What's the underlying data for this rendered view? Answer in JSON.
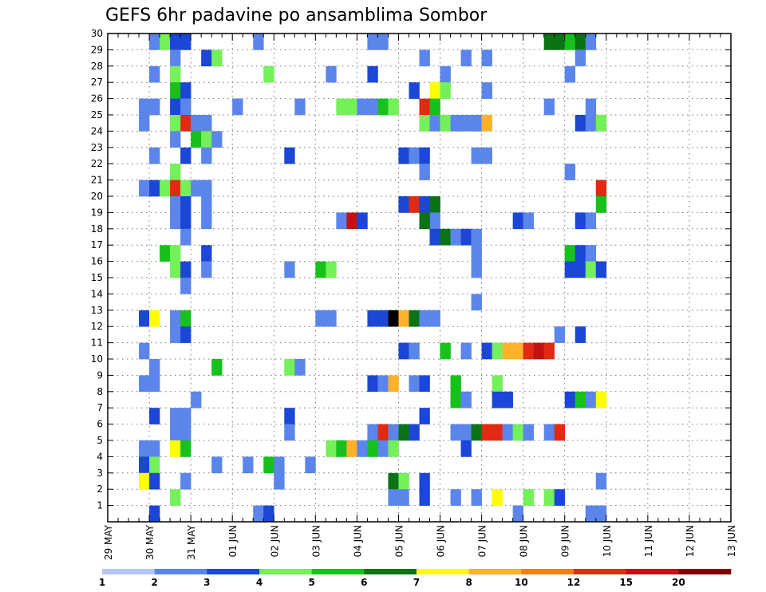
{
  "chart_data": {
    "type": "heatmap",
    "title": "GEFS 6hr padavine po ansamblima Sombor",
    "xlabel": "",
    "ylabel": "",
    "x_tick_labels": [
      "29 MAY",
      "30 MAY",
      "31 MAY",
      "01 JUN",
      "02 JUN",
      "03 JUN",
      "04 JUN",
      "05 JUN",
      "06 JUN",
      "07 JUN",
      "08 JUN",
      "09 JUN",
      "10 JUN",
      "11 JUN",
      "12 JUN",
      "13 JUN"
    ],
    "y_tick_labels": [
      "1",
      "2",
      "3",
      "4",
      "5",
      "6",
      "7",
      "8",
      "9",
      "10",
      "11",
      "12",
      "13",
      "14",
      "15",
      "16",
      "17",
      "18",
      "19",
      "20",
      "21",
      "22",
      "23",
      "24",
      "25",
      "26",
      "27",
      "28",
      "29",
      "30"
    ],
    "ylim": [
      0,
      30
    ],
    "x_steps": 60,
    "steps_per_day": 4,
    "grid": "dotted",
    "colorbar": {
      "position": "bottom",
      "tick_labels": [
        "1",
        "2",
        "3",
        "4",
        "5",
        "6",
        "7",
        "8",
        "10",
        "12",
        "15",
        "20"
      ],
      "colors": [
        "#b4c7f5",
        "#5b85eb",
        "#1c46d6",
        "#74f058",
        "#16c11b",
        "#0b7316",
        "#ffff00",
        "#ffb12a",
        "#ff7d0a",
        "#e02a12",
        "#c01414",
        "#800000"
      ]
    },
    "cells": [
      [
        3,
        30,
        1
      ],
      [
        4,
        30,
        2
      ],
      [
        5,
        30,
        3
      ],
      [
        6,
        30,
        3
      ],
      [
        7,
        30,
        1
      ],
      [
        9,
        30,
        1
      ],
      [
        12,
        30,
        5
      ],
      [
        14,
        30,
        5
      ],
      [
        15,
        30,
        5
      ],
      [
        28,
        30,
        9
      ],
      [
        29,
        30,
        9
      ],
      [
        30,
        30,
        9
      ],
      [
        32,
        30,
        2
      ],
      [
        33,
        30,
        5
      ],
      [
        35,
        30,
        3
      ],
      [
        36,
        30,
        12
      ],
      [
        38,
        30,
        6
      ],
      [
        40,
        30,
        1
      ],
      [
        44,
        30,
        6
      ],
      [
        4,
        29,
        1
      ],
      [
        5,
        29,
        3
      ],
      [
        6,
        29,
        2
      ],
      [
        7,
        29,
        2
      ],
      [
        14,
        29,
        1
      ],
      [
        25,
        29,
        1
      ],
      [
        26,
        29,
        1
      ],
      [
        42,
        29,
        5
      ],
      [
        43,
        29,
        5
      ],
      [
        44,
        29,
        4
      ],
      [
        45,
        29,
        5
      ],
      [
        46,
        29,
        1
      ],
      [
        6,
        28,
        1
      ],
      [
        9,
        28,
        2
      ],
      [
        10,
        28,
        3
      ],
      [
        30,
        28,
        1
      ],
      [
        34,
        28,
        1
      ],
      [
        36,
        28,
        1
      ],
      [
        45,
        28,
        1
      ],
      [
        4,
        27,
        1
      ],
      [
        6,
        27,
        3
      ],
      [
        15,
        27,
        3
      ],
      [
        21,
        27,
        1
      ],
      [
        25,
        27,
        2
      ],
      [
        32,
        27,
        1
      ],
      [
        44,
        27,
        1
      ],
      [
        6,
        26,
        4
      ],
      [
        7,
        26,
        2
      ],
      [
        29,
        26,
        2
      ],
      [
        31,
        26,
        6
      ],
      [
        32,
        26,
        3
      ],
      [
        36,
        26,
        1
      ],
      [
        3,
        25,
        1
      ],
      [
        4,
        25,
        1
      ],
      [
        6,
        25,
        2
      ],
      [
        7,
        25,
        1
      ],
      [
        12,
        25,
        1
      ],
      [
        18,
        25,
        1
      ],
      [
        22,
        25,
        3
      ],
      [
        23,
        25,
        3
      ],
      [
        24,
        25,
        1
      ],
      [
        25,
        25,
        1
      ],
      [
        26,
        25,
        4
      ],
      [
        27,
        25,
        3
      ],
      [
        30,
        25,
        9
      ],
      [
        31,
        25,
        4
      ],
      [
        42,
        25,
        1
      ],
      [
        46,
        25,
        1
      ],
      [
        3,
        24,
        1
      ],
      [
        6,
        24,
        3
      ],
      [
        7,
        24,
        9
      ],
      [
        8,
        24,
        1
      ],
      [
        9,
        24,
        1
      ],
      [
        30,
        24,
        3
      ],
      [
        31,
        24,
        1
      ],
      [
        32,
        24,
        3
      ],
      [
        33,
        24,
        1
      ],
      [
        34,
        24,
        1
      ],
      [
        35,
        24,
        1
      ],
      [
        36,
        24,
        7
      ],
      [
        45,
        24,
        2
      ],
      [
        46,
        24,
        1
      ],
      [
        47,
        24,
        3
      ],
      [
        6,
        23,
        1
      ],
      [
        8,
        23,
        4
      ],
      [
        9,
        23,
        3
      ],
      [
        10,
        23,
        1
      ],
      [
        4,
        22,
        1
      ],
      [
        7,
        22,
        2
      ],
      [
        9,
        22,
        1
      ],
      [
        17,
        22,
        2
      ],
      [
        28,
        22,
        2
      ],
      [
        29,
        22,
        1
      ],
      [
        30,
        22,
        2
      ],
      [
        35,
        22,
        1
      ],
      [
        36,
        22,
        1
      ],
      [
        6,
        21,
        3
      ],
      [
        30,
        21,
        1
      ],
      [
        44,
        21,
        1
      ],
      [
        3,
        20,
        1
      ],
      [
        4,
        20,
        2
      ],
      [
        5,
        20,
        3
      ],
      [
        6,
        20,
        9
      ],
      [
        7,
        20,
        3
      ],
      [
        8,
        20,
        1
      ],
      [
        9,
        20,
        1
      ],
      [
        47,
        20,
        9
      ],
      [
        6,
        19,
        1
      ],
      [
        7,
        19,
        2
      ],
      [
        9,
        19,
        1
      ],
      [
        28,
        19,
        1
      ],
      [
        29,
        19,
        1
      ],
      [
        30,
        19,
        2
      ],
      [
        31,
        19,
        1
      ],
      [
        28,
        19,
        2
      ],
      [
        29,
        19,
        9
      ],
      [
        30,
        19,
        2
      ],
      [
        31,
        19,
        5
      ],
      [
        47,
        19,
        4
      ],
      [
        6,
        18,
        1
      ],
      [
        7,
        18,
        2
      ],
      [
        9,
        18,
        1
      ],
      [
        31,
        18,
        1
      ],
      [
        30,
        18,
        5
      ],
      [
        22,
        18,
        1
      ],
      [
        23,
        18,
        10
      ],
      [
        24,
        18,
        2
      ],
      [
        39,
        18,
        2
      ],
      [
        40,
        18,
        1
      ],
      [
        45,
        18,
        2
      ],
      [
        46,
        18,
        1
      ],
      [
        31,
        17,
        1
      ],
      [
        7,
        17,
        1
      ],
      [
        31,
        17,
        2
      ],
      [
        32,
        17,
        5
      ],
      [
        33,
        17,
        1
      ],
      [
        34,
        17,
        2
      ],
      [
        35,
        17,
        1
      ],
      [
        5,
        16,
        4
      ],
      [
        6,
        16,
        3
      ],
      [
        9,
        16,
        2
      ],
      [
        35,
        16,
        1
      ],
      [
        44,
        16,
        4
      ],
      [
        45,
        16,
        2
      ],
      [
        46,
        16,
        1
      ],
      [
        6,
        15,
        3
      ],
      [
        7,
        15,
        2
      ],
      [
        9,
        15,
        1
      ],
      [
        17,
        15,
        1
      ],
      [
        20,
        15,
        4
      ],
      [
        21,
        15,
        3
      ],
      [
        35,
        15,
        1
      ],
      [
        44,
        15,
        2
      ],
      [
        45,
        15,
        2
      ],
      [
        46,
        15,
        3
      ],
      [
        47,
        15,
        2
      ],
      [
        7,
        14,
        1
      ],
      [
        35,
        13,
        1
      ],
      [
        3,
        12,
        2
      ],
      [
        4,
        12,
        6
      ],
      [
        6,
        12,
        1
      ],
      [
        7,
        12,
        4
      ],
      [
        20,
        12,
        1
      ],
      [
        21,
        12,
        1
      ],
      [
        25,
        12,
        2
      ],
      [
        26,
        12,
        2
      ],
      [
        27,
        12,
        12
      ],
      [
        28,
        12,
        7
      ],
      [
        29,
        12,
        5
      ],
      [
        30,
        12,
        1
      ],
      [
        31,
        12,
        1
      ],
      [
        6,
        11,
        1
      ],
      [
        7,
        11,
        2
      ],
      [
        43,
        11,
        1
      ],
      [
        45,
        11,
        2
      ],
      [
        3,
        10,
        1
      ],
      [
        28,
        10,
        2
      ],
      [
        29,
        10,
        1
      ],
      [
        32,
        10,
        4
      ],
      [
        34,
        10,
        1
      ],
      [
        36,
        10,
        2
      ],
      [
        37,
        10,
        3
      ],
      [
        38,
        10,
        7
      ],
      [
        39,
        10,
        7
      ],
      [
        40,
        10,
        9
      ],
      [
        41,
        10,
        10
      ],
      [
        42,
        10,
        9
      ],
      [
        4,
        9,
        1
      ],
      [
        10,
        9,
        4
      ],
      [
        17,
        9,
        3
      ],
      [
        18,
        9,
        1
      ],
      [
        3,
        8,
        1
      ],
      [
        4,
        8,
        1
      ],
      [
        25,
        8,
        2
      ],
      [
        26,
        8,
        1
      ],
      [
        27,
        8,
        7
      ],
      [
        29,
        8,
        1
      ],
      [
        30,
        8,
        2
      ],
      [
        33,
        8,
        4
      ],
      [
        37,
        8,
        3
      ],
      [
        8,
        7,
        1
      ],
      [
        33,
        7,
        4
      ],
      [
        34,
        7,
        1
      ],
      [
        37,
        7,
        2
      ],
      [
        38,
        7,
        2
      ],
      [
        44,
        7,
        2
      ],
      [
        45,
        7,
        4
      ],
      [
        46,
        7,
        1
      ],
      [
        47,
        7,
        6
      ],
      [
        4,
        6,
        2
      ],
      [
        6,
        6,
        1
      ],
      [
        7,
        6,
        1
      ],
      [
        17,
        6,
        2
      ],
      [
        30,
        6,
        2
      ],
      [
        6,
        5,
        1
      ],
      [
        7,
        5,
        1
      ],
      [
        17,
        5,
        1
      ],
      [
        25,
        5,
        1
      ],
      [
        26,
        5,
        9
      ],
      [
        27,
        5,
        1
      ],
      [
        28,
        5,
        5
      ],
      [
        29,
        5,
        2
      ],
      [
        33,
        5,
        1
      ],
      [
        34,
        5,
        1
      ],
      [
        35,
        5,
        5
      ],
      [
        36,
        5,
        9
      ],
      [
        37,
        5,
        9
      ],
      [
        38,
        5,
        1
      ],
      [
        39,
        5,
        3
      ],
      [
        40,
        5,
        1
      ],
      [
        42,
        5,
        1
      ],
      [
        43,
        5,
        9
      ],
      [
        3,
        4,
        1
      ],
      [
        4,
        4,
        1
      ],
      [
        6,
        4,
        6
      ],
      [
        7,
        4,
        4
      ],
      [
        21,
        4,
        3
      ],
      [
        22,
        4,
        4
      ],
      [
        23,
        4,
        7
      ],
      [
        24,
        4,
        1
      ],
      [
        25,
        4,
        4
      ],
      [
        26,
        4,
        1
      ],
      [
        27,
        4,
        3
      ],
      [
        34,
        4,
        2
      ],
      [
        3,
        3,
        2
      ],
      [
        4,
        3,
        3
      ],
      [
        10,
        3,
        1
      ],
      [
        13,
        3,
        1
      ],
      [
        15,
        3,
        4
      ],
      [
        16,
        3,
        1
      ],
      [
        19,
        3,
        1
      ],
      [
        3,
        2,
        6
      ],
      [
        4,
        2,
        2
      ],
      [
        7,
        2,
        1
      ],
      [
        16,
        2,
        1
      ],
      [
        27,
        2,
        5
      ],
      [
        28,
        2,
        3
      ],
      [
        30,
        2,
        2
      ],
      [
        47,
        2,
        1
      ],
      [
        6,
        1,
        3
      ],
      [
        27,
        1,
        1
      ],
      [
        28,
        1,
        1
      ],
      [
        30,
        1,
        2
      ],
      [
        33,
        1,
        1
      ],
      [
        35,
        1,
        1
      ],
      [
        37,
        1,
        6
      ],
      [
        40,
        1,
        3
      ],
      [
        42,
        1,
        3
      ],
      [
        43,
        1,
        2
      ],
      [
        4,
        0,
        2
      ],
      [
        14,
        0,
        1
      ],
      [
        15,
        0,
        2
      ],
      [
        39,
        0,
        1
      ],
      [
        46,
        0,
        1
      ],
      [
        47,
        0,
        1
      ]
    ]
  }
}
